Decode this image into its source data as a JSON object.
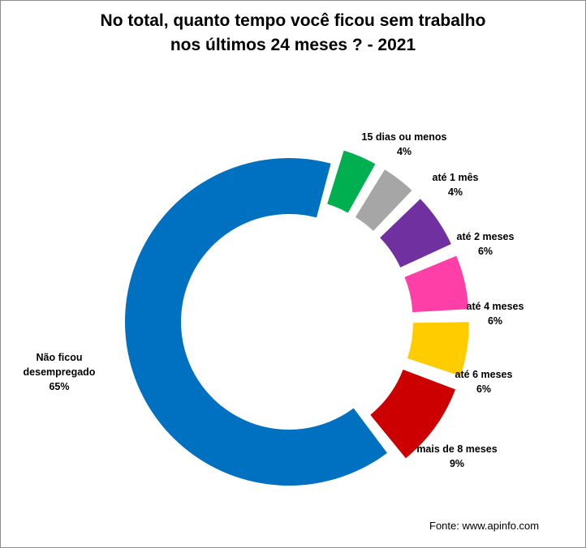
{
  "title_lines": [
    "No total, quanto tempo você ficou sem trabalho",
    "nos últimos 24 meses ? - 2021"
  ],
  "source": "Fonte: www.apinfo.com",
  "chart_data": {
    "type": "donut",
    "title": "No total, quanto tempo você ficou sem trabalho nos últimos 24 meses ? - 2021",
    "categories": [
      "15 dias ou menos",
      "até 1 mês",
      "até 2 meses",
      "até 4 meses",
      "até 6 meses",
      "mais de 8 meses",
      "Não ficou desempregado"
    ],
    "values": [
      4,
      4,
      6,
      6,
      6,
      9,
      65
    ],
    "value_labels": [
      "4%",
      "4%",
      "6%",
      "6%",
      "6%",
      "9%",
      "65%"
    ],
    "colors": [
      "#00b050",
      "#a6a6a6",
      "#7030a0",
      "#ff3fa8",
      "#ffcc00",
      "#cc0000",
      "#0070c0"
    ],
    "legend": "none"
  },
  "labels": [
    {
      "name": "15 dias ou menos",
      "pct": "4%"
    },
    {
      "name": "até 1 mês",
      "pct": "4%"
    },
    {
      "name": "até 2 meses",
      "pct": "6%"
    },
    {
      "name": "até 4 meses",
      "pct": "6%"
    },
    {
      "name": "até 6 meses",
      "pct": "6%"
    },
    {
      "name": "mais de 8 meses",
      "pct": "9%"
    },
    {
      "name1": "Não ficou",
      "name2": "desempregado",
      "pct": "65%"
    }
  ]
}
